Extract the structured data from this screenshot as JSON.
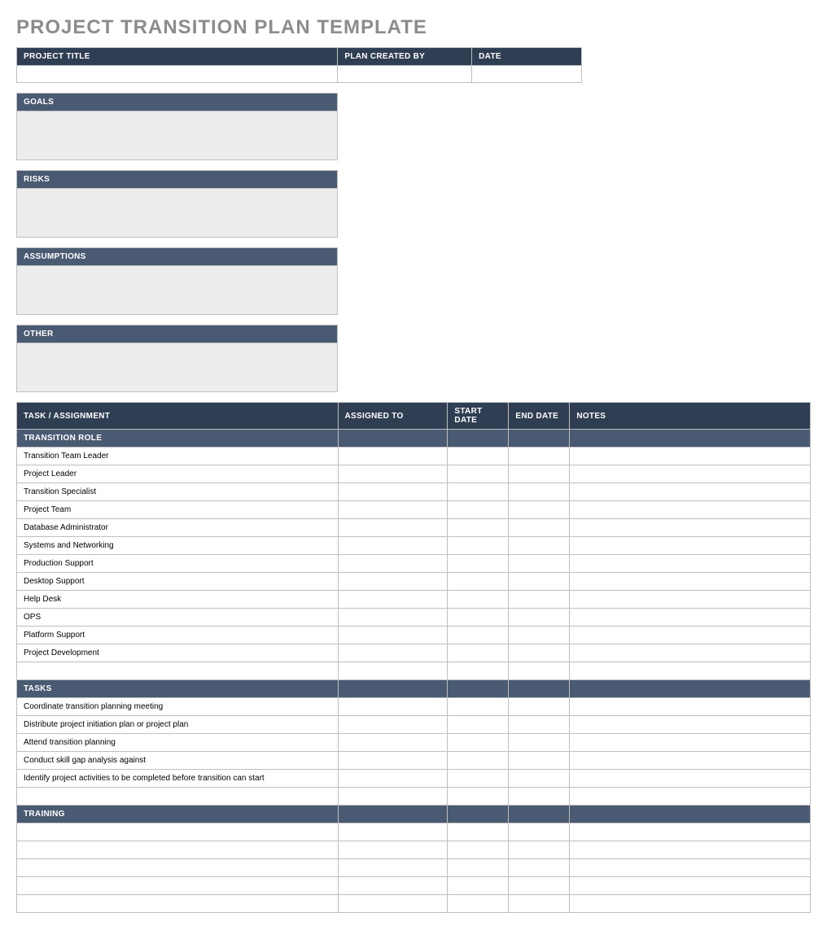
{
  "title": "PROJECT TRANSITION PLAN TEMPLATE",
  "colors": {
    "header_dark": "#2f3e53",
    "header_mid": "#4a5a72",
    "grid_border": "#bfbfbf",
    "title_grey": "#8c8c8c",
    "fill_grey": "#ededed",
    "fill_white": "#ffffff"
  },
  "info": {
    "headers": [
      "PROJECT TITLE",
      "PLAN CREATED BY",
      "DATE"
    ],
    "values": [
      "",
      "",
      ""
    ]
  },
  "sections": {
    "goals": {
      "label": "GOALS",
      "value": ""
    },
    "risks": {
      "label": "RISKS",
      "value": ""
    },
    "assumptions": {
      "label": "ASSUMPTIONS",
      "value": ""
    },
    "other": {
      "label": "OTHER",
      "value": ""
    }
  },
  "grid": {
    "headers": [
      "TASK / ASSIGNMENT",
      "ASSIGNED TO",
      "START DATE",
      "END DATE",
      "NOTES"
    ],
    "groups": [
      {
        "label": "TRANSITION ROLE",
        "rows": [
          "Transition Team Leader",
          "Project Leader",
          "Transition Specialist",
          "Project Team",
          "Database Administrator",
          "Systems and Networking",
          "Production Support",
          "Desktop Support",
          "Help Desk",
          "OPS",
          "Platform Support",
          "Project Development"
        ],
        "trailing_blank_rows": 1
      },
      {
        "label": "TASKS",
        "rows": [
          "Coordinate transition planning meeting",
          "Distribute project initiation plan or project plan",
          "Attend transition planning",
          "Conduct skill gap analysis against",
          "Identify project activities to be completed before transition can start"
        ],
        "trailing_blank_rows": 1
      },
      {
        "label": "TRAINING",
        "rows": [],
        "trailing_blank_rows": 5
      }
    ]
  }
}
